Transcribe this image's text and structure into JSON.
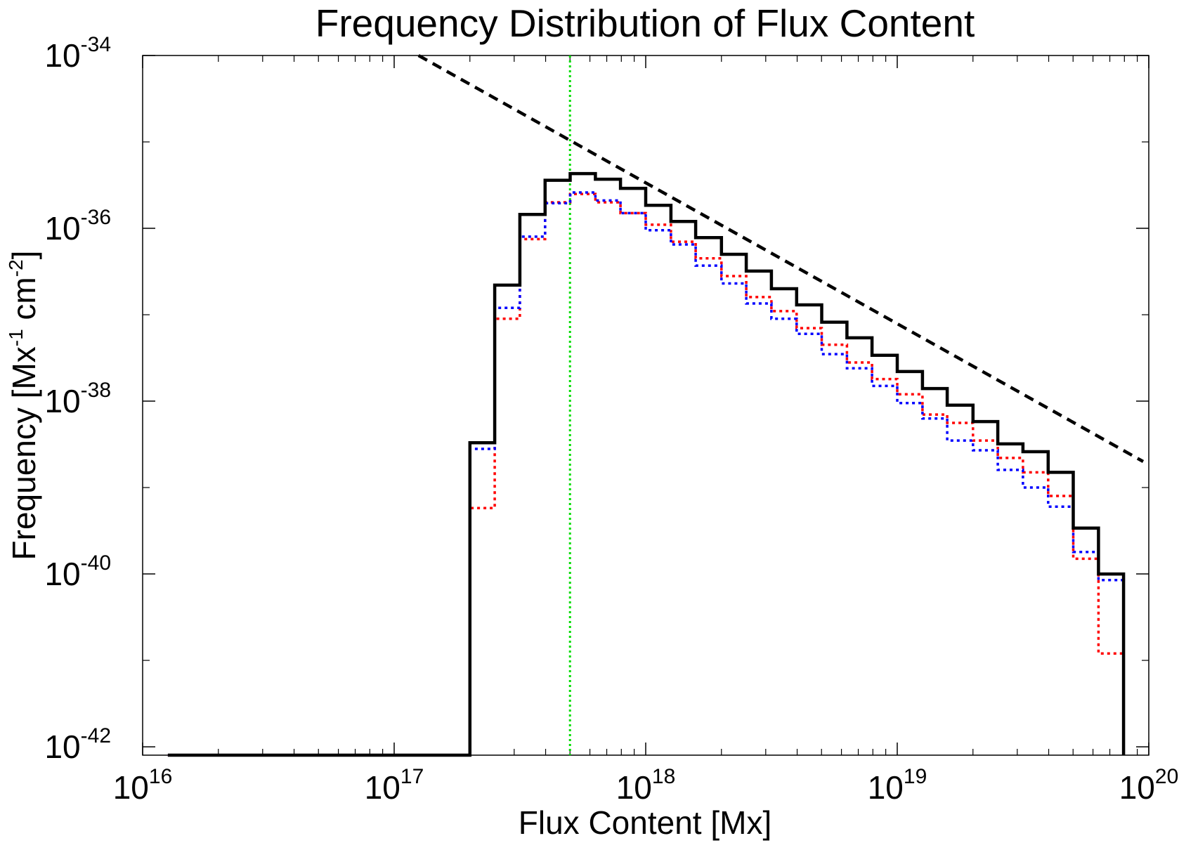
{
  "chart_data": {
    "type": "line",
    "title": "Frequency Distribution of Flux Content",
    "xlabel": "Flux Content [Mx]",
    "ylabel": {
      "base": "Frequency [Mx",
      "exp1": "-1",
      "mid": " cm",
      "exp2": "-2",
      "end": "]"
    },
    "x_scale": "log",
    "y_scale": "log",
    "xlim": [
      1e+16,
      1e+20
    ],
    "ylim": [
      8e-43,
      1e-34
    ],
    "x_ticks": [
      {
        "value": 1e+16,
        "base": "10",
        "exp": "16"
      },
      {
        "value": 1e+17,
        "base": "10",
        "exp": "17"
      },
      {
        "value": 1e+18,
        "base": "10",
        "exp": "18"
      },
      {
        "value": 1e+19,
        "base": "10",
        "exp": "19"
      },
      {
        "value": 1e+20,
        "base": "10",
        "exp": "20"
      }
    ],
    "y_ticks": [
      {
        "value": 1e-34,
        "base": "10",
        "exp": "-34"
      },
      {
        "value": 1e-36,
        "base": "10",
        "exp": "-36"
      },
      {
        "value": 1e-38,
        "base": "10",
        "exp": "-38"
      },
      {
        "value": 1e-40,
        "base": "10",
        "exp": "-40"
      },
      {
        "value": 1e-42,
        "base": "10",
        "exp": "-42"
      }
    ],
    "y_minor_ticks": [
      1e-35,
      1e-37,
      1e-39,
      1e-41
    ],
    "bin_edges": [
      1.26e+16,
      2e+17,
      2.51e+17,
      3.16e+17,
      3.98e+17,
      5.01e+17,
      6.31e+17,
      7.94e+17,
      1e+18,
      1.26e+18,
      1.58e+18,
      2e+18,
      2.51e+18,
      3.16e+18,
      3.98e+18,
      5.01e+18,
      6.31e+18,
      7.94e+18,
      1e+19,
      1.26e+19,
      1.58e+19,
      2e+19,
      2.51e+19,
      3.16e+19,
      3.98e+19,
      5.01e+19,
      6.31e+19,
      7.94e+19
    ],
    "y_floor": 8e-43,
    "series": [
      {
        "color": "#000000",
        "style": "solid",
        "values": [
          8e-43,
          3.3e-39,
          2.2e-37,
          1.45e-36,
          3.6e-36,
          4.3e-36,
          3.7e-36,
          2.9e-36,
          1.85e-36,
          1.2e-36,
          7.8e-37,
          5e-37,
          3.2e-37,
          2e-37,
          1.3e-37,
          8.2e-38,
          5.4e-38,
          3.4e-38,
          2.2e-38,
          1.4e-38,
          9e-39,
          5.8e-39,
          3.2e-39,
          2.6e-39,
          1.5e-39,
          3.4e-40,
          1e-40
        ]
      },
      {
        "color": "#0000ff",
        "style": "dotted",
        "values": [
          8e-43,
          2.8e-39,
          1.2e-37,
          8e-37,
          1.95e-36,
          2.6e-36,
          2.1e-36,
          1.5e-36,
          9.5e-37,
          6.5e-37,
          3.7e-37,
          2.3e-37,
          1.35e-37,
          9e-38,
          6e-38,
          3.5e-38,
          2.4e-38,
          1.5e-38,
          9.5e-39,
          6.3e-39,
          3.5e-39,
          2.7e-39,
          1.6e-39,
          1e-39,
          6e-40,
          1.8e-40,
          8.5e-41
        ]
      },
      {
        "color": "#ff0000",
        "style": "dotted",
        "values": [
          8e-43,
          5.8e-40,
          9e-38,
          7.5e-37,
          2e-36,
          2.5e-36,
          2e-36,
          1.5e-36,
          1.1e-36,
          7e-37,
          4.5e-37,
          2.8e-37,
          1.6e-37,
          1.1e-37,
          7e-38,
          4.5e-38,
          2.8e-38,
          1.8e-38,
          1.2e-38,
          7e-39,
          5.6e-39,
          3.5e-39,
          2.2e-39,
          1.5e-39,
          8e-40,
          1.5e-40,
          1.2e-41
        ]
      }
    ],
    "fit_line": {
      "color": "#000000",
      "style": "dashed",
      "x": [
        1.25e+17,
        9.5e+19
      ],
      "y": [
        1e-34,
        2e-39
      ]
    },
    "threshold_line": {
      "color": "#00dd00",
      "style": "dotted",
      "x": 5e+17
    },
    "grid": false,
    "legend": "none"
  }
}
